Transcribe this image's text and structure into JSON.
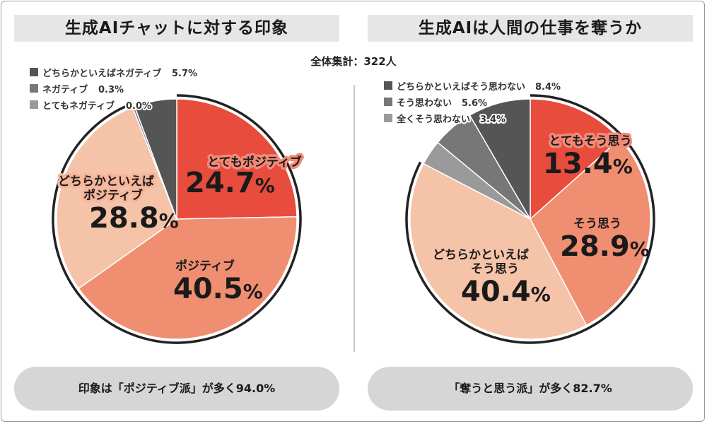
{
  "total_label": "全体集計：322人",
  "left": {
    "title": "生成AIチャットに対する印象",
    "summary": "印象は「ポジティブ派」が多く94.0%"
  },
  "right": {
    "title": "生成AIは人間の仕事を奪うか",
    "summary": "「奪うと思う派」が多く82.7%"
  },
  "colors": {
    "level1": "#e84c3d",
    "level2": "#ef8e70",
    "level3": "#f4c3a8",
    "neg1": "#555555",
    "neg2": "#777777",
    "neg3": "#9a9a9a"
  },
  "chart_data": [
    {
      "type": "pie",
      "title": "生成AIチャットに対する印象",
      "start": "12 o'clock, clockwise",
      "slices": [
        {
          "label": "とてもポジティブ",
          "value": 24.7,
          "pct_text": "24.7",
          "color": "#e84c3d"
        },
        {
          "label": "ポジティブ",
          "value": 40.5,
          "pct_text": "40.5",
          "color": "#ef8e70"
        },
        {
          "label": "どちらかといえばポジティブ",
          "value": 28.8,
          "pct_text": "28.8",
          "color": "#f4c3a8"
        },
        {
          "label": "とてもネガティブ",
          "value": 0.0,
          "pct_text": "0.0%",
          "color": "#9a9a9a"
        },
        {
          "label": "ネガティブ",
          "value": 0.3,
          "pct_text": "0.3%",
          "color": "#777777"
        },
        {
          "label": "どちらかといえばネガティブ",
          "value": 5.7,
          "pct_text": "5.7%",
          "color": "#555555"
        }
      ],
      "legend": [
        {
          "label": "どちらかといえばネガティブ",
          "pct": "5.7%",
          "color": "#555555"
        },
        {
          "label": "ネガティブ",
          "pct": "0.3%",
          "color": "#777777"
        },
        {
          "label": "とてもネガティブ",
          "pct": "0.0%",
          "color": "#9a9a9a"
        }
      ],
      "percent_sign": "%"
    },
    {
      "type": "pie",
      "title": "生成AIは人間の仕事を奪うか",
      "start": "12 o'clock, clockwise",
      "slices": [
        {
          "label": "とてもそう思う",
          "value": 13.4,
          "pct_text": "13.4",
          "color": "#e84c3d"
        },
        {
          "label": "そう思う",
          "value": 28.9,
          "pct_text": "28.9",
          "color": "#ef8e70"
        },
        {
          "label": "どちらかといえばそう思う",
          "value": 40.4,
          "pct_text": "40.4",
          "color": "#f4c3a8"
        },
        {
          "label": "全くそう思わない",
          "value": 3.4,
          "pct_text": "3.4%",
          "color": "#9a9a9a"
        },
        {
          "label": "そう思わない",
          "value": 5.6,
          "pct_text": "5.6%",
          "color": "#777777"
        },
        {
          "label": "どちらかといえばそう思わない",
          "value": 8.4,
          "pct_text": "8.4%",
          "color": "#555555"
        }
      ],
      "legend": [
        {
          "label": "どちらかといえばそう思わない",
          "pct": "8.4%",
          "color": "#555555"
        },
        {
          "label": "そう思わない",
          "pct": "5.6%",
          "color": "#777777"
        },
        {
          "label": "全くそう思わない",
          "pct": "3.4%",
          "color": "#9a9a9a"
        }
      ],
      "percent_sign": "%"
    }
  ]
}
